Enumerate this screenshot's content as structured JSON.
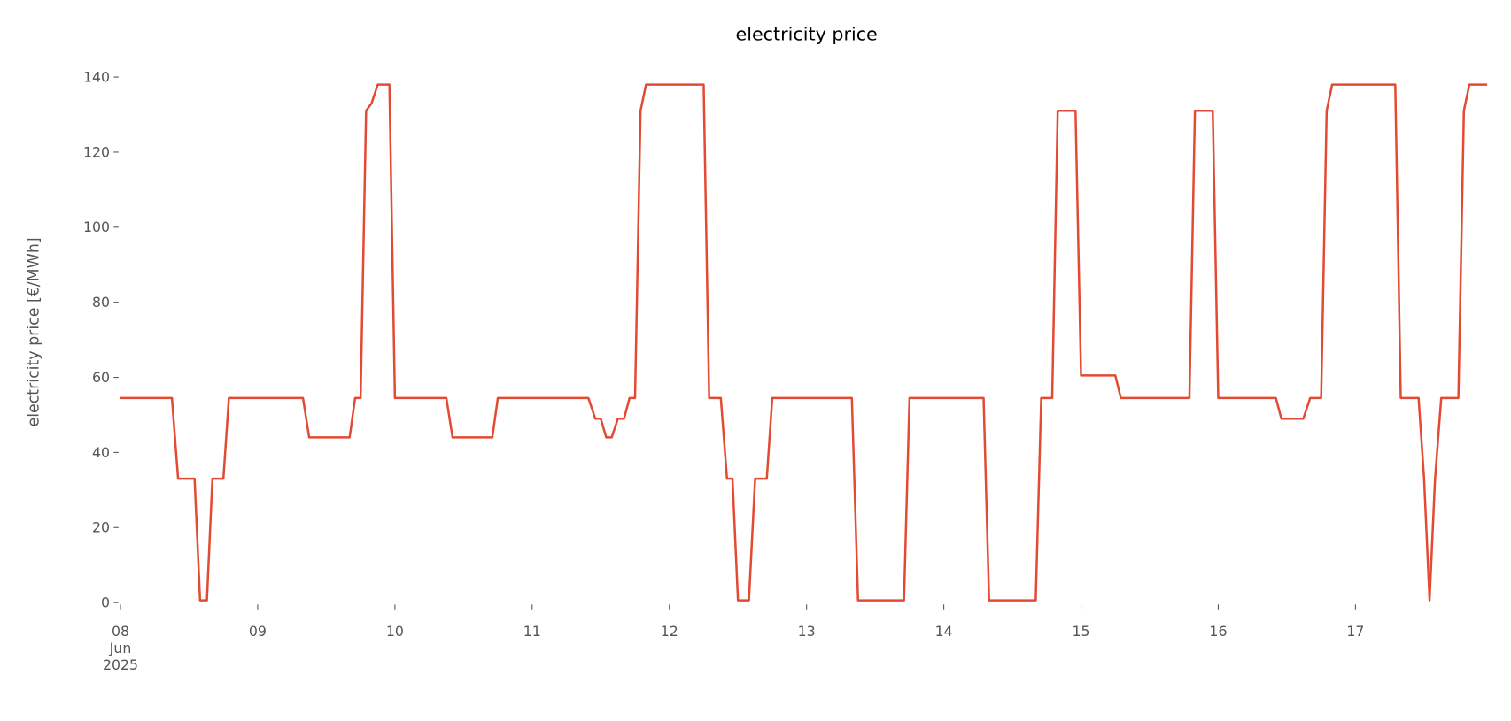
{
  "chart_data": {
    "type": "line",
    "title": "electricity price",
    "ylabel": "electricity price [€/MWh]",
    "x": [
      0,
      0.375,
      0.42,
      0.54,
      0.58,
      0.63,
      0.67,
      0.75,
      0.79,
      1.33,
      1.375,
      1.67,
      1.71,
      1.75,
      1.79,
      1.83,
      1.875,
      1.96,
      2.0,
      2.375,
      2.42,
      2.71,
      2.75,
      3.41,
      3.46,
      3.5,
      3.54,
      3.58,
      3.625,
      3.67,
      3.71,
      3.75,
      3.79,
      3.83,
      4.25,
      4.29,
      4.375,
      4.42,
      4.46,
      4.5,
      4.58,
      4.625,
      4.71,
      4.75,
      5.33,
      5.375,
      5.71,
      5.75,
      6.29,
      6.33,
      6.67,
      6.71,
      6.79,
      6.83,
      6.96,
      7.0,
      7.25,
      7.29,
      7.79,
      7.83,
      7.96,
      8.0,
      8.42,
      8.46,
      8.62,
      8.67,
      8.75,
      8.79,
      8.83,
      9.29,
      9.33,
      9.46,
      9.5,
      9.54,
      9.58,
      9.625,
      9.75,
      9.79,
      9.83,
      9.96
    ],
    "series": [
      {
        "name": "electricity price",
        "color": "#e24a33",
        "values": [
          54.5,
          54.5,
          33,
          33,
          0.6,
          0.6,
          33,
          33,
          54.5,
          54.5,
          44,
          44,
          54.5,
          54.5,
          131,
          133,
          138,
          138,
          54.5,
          54.5,
          44,
          44,
          54.5,
          54.5,
          49,
          49,
          44,
          44,
          49,
          49,
          54.5,
          54.5,
          131,
          138,
          138,
          54.5,
          54.5,
          33,
          33,
          0.6,
          0.6,
          33,
          33,
          54.5,
          54.5,
          0.6,
          0.6,
          54.5,
          54.5,
          0.6,
          0.6,
          54.5,
          54.5,
          131,
          131,
          60.5,
          60.5,
          54.5,
          54.5,
          131,
          131,
          54.5,
          54.5,
          49,
          49,
          54.5,
          54.5,
          131,
          138,
          138,
          54.5,
          54.5,
          33,
          0.6,
          33,
          54.5,
          54.5,
          131,
          138,
          138
        ]
      }
    ],
    "xlim": [
      0,
      10
    ],
    "xticks": [
      {
        "value": 0,
        "label": "08\nJun\n2025"
      },
      {
        "value": 1,
        "label": "09"
      },
      {
        "value": 2,
        "label": "10"
      },
      {
        "value": 3,
        "label": "11"
      },
      {
        "value": 4,
        "label": "12"
      },
      {
        "value": 5,
        "label": "13"
      },
      {
        "value": 6,
        "label": "14"
      },
      {
        "value": 7,
        "label": "15"
      },
      {
        "value": 8,
        "label": "16"
      },
      {
        "value": 9,
        "label": "17"
      }
    ],
    "ylim": [
      0,
      140
    ],
    "yticks": [
      0,
      20,
      40,
      60,
      80,
      100,
      120,
      140
    ],
    "grid": false
  }
}
